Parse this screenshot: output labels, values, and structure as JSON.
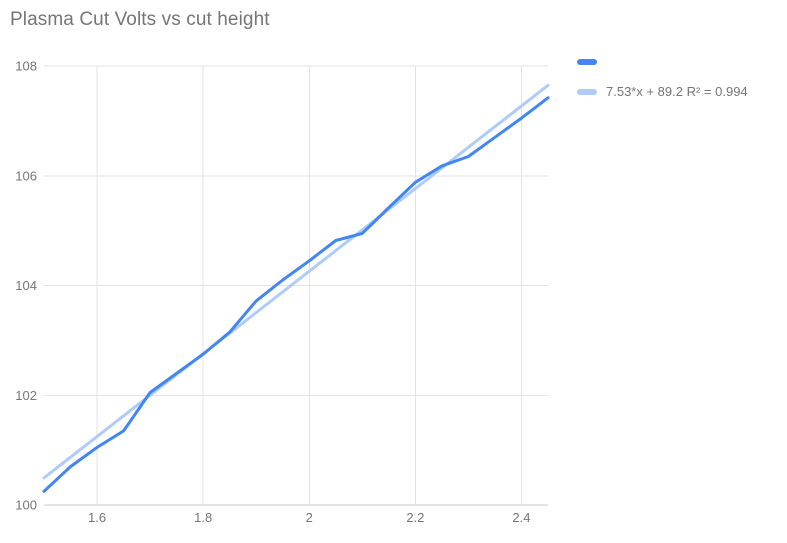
{
  "title": "Plasma Cut Volts vs cut height",
  "colors": {
    "background": "#ffffff",
    "series_blue": "#4285f4",
    "trendline_blue": "#aecbfa",
    "gridline": "#e3e3e3",
    "axis_line": "#c7c7c7",
    "text_gray": "#757575"
  },
  "legend": {
    "items": [
      {
        "label": "",
        "color": "#4285f4"
      },
      {
        "label": "7.53*x + 89.2 R² = 0.994",
        "color": "#aecbfa"
      }
    ]
  },
  "chart_data": {
    "type": "line",
    "title": "Plasma Cut Volts vs cut height",
    "xlabel": "",
    "ylabel": "",
    "xlim": [
      1.5,
      2.45
    ],
    "ylim": [
      100,
      108
    ],
    "grid": true,
    "legend_position": "top-right",
    "x_ticks": [
      1.6,
      1.8,
      2,
      2.2,
      2.4
    ],
    "x_tick_labels": [
      "1.6",
      "1.8",
      "2",
      "2.2",
      "2.4"
    ],
    "y_ticks": [
      100,
      102,
      104,
      106,
      108
    ],
    "y_tick_labels": [
      "100",
      "102",
      "104",
      "106",
      "108"
    ],
    "x": [
      1.5,
      1.55,
      1.6,
      1.65,
      1.7,
      1.75,
      1.8,
      1.85,
      1.9,
      1.95,
      2.0,
      2.05,
      2.1,
      2.15,
      2.2,
      2.25,
      2.3,
      2.35,
      2.4,
      2.45
    ],
    "series": [
      {
        "name": "",
        "kind": "data",
        "color": "#4285f4",
        "values": [
          100.25,
          100.7,
          101.05,
          101.35,
          102.05,
          102.4,
          102.75,
          103.15,
          103.72,
          104.1,
          104.45,
          104.82,
          104.95,
          105.42,
          105.88,
          106.18,
          106.35,
          106.7,
          107.05,
          107.42
        ]
      },
      {
        "name": "7.53*x + 89.2 R² = 0.994",
        "kind": "trendline",
        "color": "#aecbfa",
        "slope": 7.53,
        "intercept": 89.2,
        "equation": "7.53*x + 89.2",
        "r_squared": 0.994
      }
    ]
  }
}
